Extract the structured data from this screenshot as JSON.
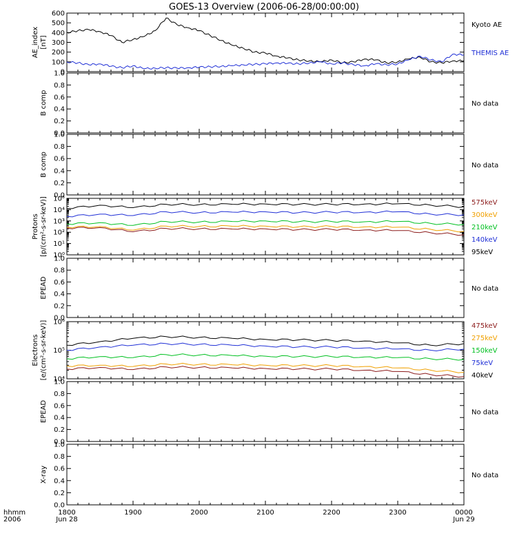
{
  "title": "GOES-13 Overview (2006-06-28/00:00:00)",
  "x_axis": {
    "row1": [
      "hhmm",
      "1800",
      "1900",
      "2000",
      "2100",
      "2200",
      "2300",
      "0000"
    ],
    "row2": [
      "2006",
      "Jun 28",
      "Jun 29"
    ]
  },
  "panels": [
    {
      "id": "ae",
      "ylabel": [
        "AE_index",
        "[nT]"
      ],
      "yticks": [
        "0",
        "100",
        "200",
        "300",
        "400",
        "500",
        "600"
      ],
      "legend": [
        {
          "text": "Kyoto AE",
          "color": "#000000"
        },
        {
          "text": "THEMIS AE",
          "color": "#1f2fd6"
        }
      ]
    },
    {
      "id": "bcomp1",
      "ylabel": [
        "B comp"
      ],
      "yticks": [
        "0.0",
        "0.2",
        "0.4",
        "0.6",
        "0.8",
        "1.0"
      ],
      "status": "No data"
    },
    {
      "id": "bcomp2",
      "ylabel": [
        "B comp"
      ],
      "yticks": [
        "0.0",
        "0.2",
        "0.4",
        "0.6",
        "0.8",
        "1.0"
      ],
      "status": "No data"
    },
    {
      "id": "protons",
      "ylabel": [
        "Protons",
        "[p/(cm²-s-sr-keV)]"
      ],
      "yticks": [
        "10⁰",
        "10¹",
        "10²",
        "10³",
        "10⁴",
        "10⁵"
      ],
      "legend": [
        {
          "text": "575keV",
          "color": "#8b1a1a"
        },
        {
          "text": "300keV",
          "color": "#f0a000"
        },
        {
          "text": "210keV",
          "color": "#00c020"
        },
        {
          "text": "140keV",
          "color": "#1f2fd6"
        },
        {
          "text": "95keV",
          "color": "#000000"
        }
      ]
    },
    {
      "id": "epead1",
      "ylabel": [
        "EPEAD"
      ],
      "yticks": [
        "0.0",
        "0.2",
        "0.4",
        "0.6",
        "0.8",
        "1.0"
      ],
      "status": "No data"
    },
    {
      "id": "electrons",
      "ylabel": [
        "Electrons",
        "[e/(cm²-s-sr-keV)]"
      ],
      "yticks": [
        "10⁴",
        "10⁵",
        "10⁶"
      ],
      "legend": [
        {
          "text": "475keV",
          "color": "#8b1a1a"
        },
        {
          "text": "275keV",
          "color": "#f0a000"
        },
        {
          "text": "150keV",
          "color": "#00c020"
        },
        {
          "text": "75keV",
          "color": "#1f2fd6"
        },
        {
          "text": "40keV",
          "color": "#000000"
        }
      ]
    },
    {
      "id": "epead2",
      "ylabel": [
        "EPEAD"
      ],
      "yticks": [
        "0.0",
        "0.2",
        "0.4",
        "0.6",
        "0.8",
        "1.0"
      ],
      "status": "No data"
    },
    {
      "id": "xray",
      "ylabel": [
        "X-ray"
      ],
      "yticks": [
        "0.0",
        "0.2",
        "0.4",
        "0.6",
        "0.8",
        "1.0"
      ],
      "status": "No data"
    }
  ],
  "chart_data": [
    {
      "type": "line",
      "panel": "ae",
      "ylim": [
        0,
        600
      ],
      "xlim": [
        "18:00",
        "24:00"
      ],
      "series": [
        {
          "name": "Kyoto AE",
          "color": "#000000",
          "x": [
            "18:00",
            "18:10",
            "18:20",
            "18:30",
            "18:40",
            "18:50",
            "19:00",
            "19:10",
            "19:20",
            "19:30",
            "19:40",
            "19:50",
            "20:00",
            "20:10",
            "20:20",
            "20:30",
            "20:40",
            "20:50",
            "21:00",
            "21:10",
            "21:20",
            "21:30",
            "21:40",
            "21:50",
            "22:00",
            "22:10",
            "22:20",
            "22:30",
            "22:40",
            "22:50",
            "23:00",
            "23:10",
            "23:20",
            "23:30",
            "23:40",
            "23:50",
            "24:00"
          ],
          "values": [
            400,
            420,
            430,
            410,
            370,
            300,
            330,
            360,
            420,
            550,
            480,
            450,
            420,
            370,
            320,
            270,
            240,
            200,
            190,
            160,
            140,
            120,
            110,
            100,
            120,
            90,
            100,
            130,
            120,
            90,
            100,
            130,
            150,
            100,
            90,
            110,
            110
          ]
        },
        {
          "name": "THEMIS AE",
          "color": "#1f2fd6",
          "x": [
            "18:00",
            "18:10",
            "18:20",
            "18:30",
            "18:40",
            "18:50",
            "19:00",
            "19:10",
            "19:20",
            "19:30",
            "19:40",
            "19:50",
            "20:00",
            "20:10",
            "20:20",
            "20:30",
            "20:40",
            "20:50",
            "21:00",
            "21:10",
            "21:20",
            "21:30",
            "21:40",
            "21:50",
            "22:00",
            "22:10",
            "22:20",
            "22:30",
            "22:40",
            "22:50",
            "23:00",
            "23:10",
            "23:20",
            "23:30",
            "23:40",
            "23:50",
            "24:00"
          ],
          "values": [
            100,
            90,
            70,
            80,
            55,
            40,
            60,
            30,
            35,
            40,
            35,
            40,
            45,
            50,
            55,
            60,
            70,
            75,
            80,
            90,
            85,
            80,
            90,
            100,
            80,
            90,
            70,
            60,
            80,
            70,
            80,
            120,
            160,
            120,
            100,
            180,
            170
          ]
        }
      ]
    },
    {
      "type": "line",
      "panel": "protons",
      "y_scale": "log",
      "ylim": [
        1,
        100000
      ],
      "xlim": [
        "18:00",
        "24:00"
      ],
      "series": [
        {
          "name": "95keV",
          "color": "#000000",
          "x": [
            "18:00",
            "18:30",
            "19:00",
            "19:30",
            "20:00",
            "20:30",
            "21:00",
            "21:30",
            "22:00",
            "22:30",
            "23:00",
            "23:30",
            "24:00"
          ],
          "values": [
            13000,
            25000,
            15000,
            30000,
            28000,
            30000,
            32000,
            29000,
            30000,
            31000,
            33000,
            25000,
            18000
          ]
        },
        {
          "name": "140keV",
          "color": "#1f2fd6",
          "x": [
            "18:00",
            "18:30",
            "19:00",
            "19:30",
            "20:00",
            "20:30",
            "21:00",
            "21:30",
            "22:00",
            "22:30",
            "23:00",
            "23:30",
            "24:00"
          ],
          "values": [
            2500,
            4000,
            3000,
            6500,
            5500,
            6000,
            6500,
            5500,
            6000,
            6000,
            6500,
            4000,
            3500
          ]
        },
        {
          "name": "210keV",
          "color": "#00c020",
          "x": [
            "18:00",
            "18:30",
            "19:00",
            "19:30",
            "20:00",
            "20:30",
            "21:00",
            "21:30",
            "22:00",
            "22:30",
            "23:00",
            "23:30",
            "24:00"
          ],
          "values": [
            550,
            700,
            400,
            900,
            800,
            900,
            1000,
            850,
            900,
            850,
            900,
            600,
            500
          ]
        },
        {
          "name": "300keV",
          "color": "#f0a000",
          "x": [
            "18:00",
            "18:30",
            "19:00",
            "19:30",
            "20:00",
            "20:30",
            "21:00",
            "21:30",
            "22:00",
            "22:30",
            "23:00",
            "23:30",
            "24:00"
          ],
          "values": [
            280,
            320,
            150,
            350,
            330,
            340,
            350,
            300,
            320,
            300,
            280,
            180,
            120
          ]
        },
        {
          "name": "575keV",
          "color": "#8b1a1a",
          "x": [
            "18:00",
            "18:30",
            "19:00",
            "19:30",
            "20:00",
            "20:30",
            "21:00",
            "21:30",
            "22:00",
            "22:30",
            "23:00",
            "23:30",
            "24:00"
          ],
          "values": [
            230,
            260,
            110,
            220,
            200,
            190,
            200,
            170,
            180,
            160,
            140,
            90,
            60
          ]
        }
      ]
    },
    {
      "type": "line",
      "panel": "electrons",
      "y_scale": "log",
      "ylim": [
        10000,
        1000000
      ],
      "xlim": [
        "18:00",
        "24:00"
      ],
      "series": [
        {
          "name": "40keV",
          "color": "#000000",
          "x": [
            "18:00",
            "18:30",
            "19:00",
            "19:30",
            "20:00",
            "20:30",
            "21:00",
            "21:30",
            "22:00",
            "22:30",
            "23:00",
            "23:30",
            "24:00"
          ],
          "values": [
            150000,
            200000,
            260000,
            300000,
            280000,
            260000,
            240000,
            230000,
            220000,
            210000,
            180000,
            150000,
            170000
          ]
        },
        {
          "name": "75keV",
          "color": "#1f2fd6",
          "x": [
            "18:00",
            "18:30",
            "19:00",
            "19:30",
            "20:00",
            "20:30",
            "21:00",
            "21:30",
            "22:00",
            "22:30",
            "23:00",
            "23:30",
            "24:00"
          ],
          "values": [
            100000,
            130000,
            150000,
            170000,
            160000,
            150000,
            140000,
            130000,
            130000,
            120000,
            110000,
            100000,
            110000
          ]
        },
        {
          "name": "150keV",
          "color": "#00c020",
          "x": [
            "18:00",
            "18:30",
            "19:00",
            "19:30",
            "20:00",
            "20:30",
            "21:00",
            "21:30",
            "22:00",
            "22:30",
            "23:00",
            "23:30",
            "24:00"
          ],
          "values": [
            50000,
            60000,
            55000,
            70000,
            68000,
            65000,
            62000,
            60000,
            60000,
            58000,
            55000,
            50000,
            48000
          ]
        },
        {
          "name": "275keV",
          "color": "#f0a000",
          "x": [
            "18:00",
            "18:30",
            "19:00",
            "19:30",
            "20:00",
            "20:30",
            "21:00",
            "21:30",
            "22:00",
            "22:30",
            "23:00",
            "23:30",
            "24:00"
          ],
          "values": [
            28000,
            30000,
            27000,
            33000,
            32000,
            31000,
            30000,
            29000,
            29000,
            27000,
            24000,
            20000,
            17000
          ]
        },
        {
          "name": "475keV",
          "color": "#8b1a1a",
          "x": [
            "18:00",
            "18:30",
            "19:00",
            "19:30",
            "20:00",
            "20:30",
            "21:00",
            "21:30",
            "22:00",
            "22:30",
            "23:00",
            "23:30",
            "24:00"
          ],
          "values": [
            22000,
            25000,
            21000,
            26000,
            25000,
            24000,
            23000,
            22000,
            22000,
            20000,
            18000,
            14000,
            12000
          ]
        }
      ]
    }
  ]
}
